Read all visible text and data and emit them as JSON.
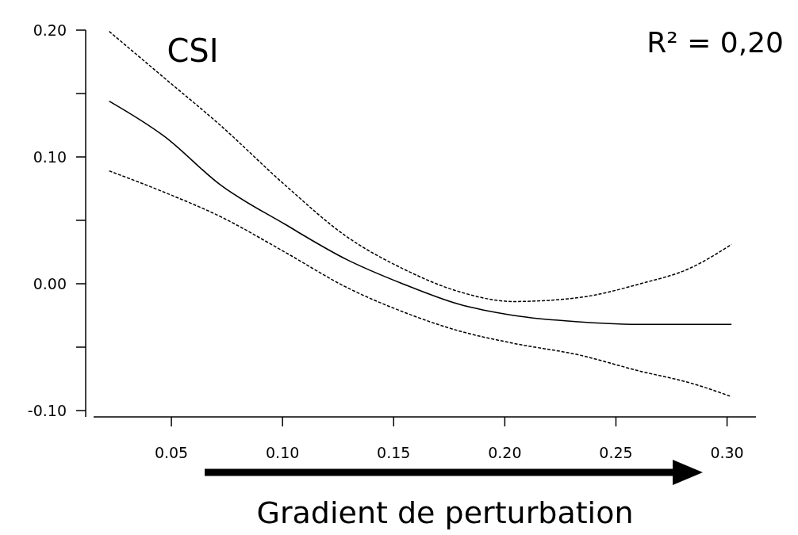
{
  "chart_data": {
    "type": "line",
    "title": "CSI",
    "xlabel": "Gradient de perturbation",
    "annotations": [
      "R² = 0,20"
    ],
    "xlim": [
      0.015,
      0.313
    ],
    "ylim": [
      -0.105,
      0.2
    ],
    "xticks": [
      0.05,
      {
        "value": 0.1,
        "label": "0.10"
      },
      0.15,
      {
        "value": 0.2,
        "label": "0.20"
      },
      0.25,
      {
        "value": 0.3,
        "label": "0.30"
      }
    ],
    "yticks": [
      {
        "value": 0.2,
        "label": "0.20"
      },
      {
        "value": 0.15,
        "label": null
      },
      {
        "value": 0.1,
        "label": "0.10"
      },
      {
        "value": 0.05,
        "label": null
      },
      {
        "value": 0,
        "label": "0.00"
      },
      {
        "value": -0.05,
        "label": null
      },
      {
        "value": -0.1,
        "label": "-0.10"
      }
    ],
    "grid": false,
    "marker": "none",
    "line_style": "solid",
    "x": [
      0.022,
      0.047,
      0.072,
      0.101,
      0.129,
      0.154,
      0.179,
      0.204,
      0.233,
      0.261,
      0.283,
      0.302
    ],
    "series": [
      {
        "color": "#000000",
        "values": [
          0.144,
          0.116,
          0.078,
          0.047,
          0.019,
          0.0,
          -0.016,
          -0.025,
          -0.03,
          -0.032,
          -0.032,
          -0.032
        ]
      },
      {
        "color": "#000000",
        "line_style": "dashed",
        "values": [
          0.199,
          0.162,
          0.125,
          0.078,
          0.037,
          0.012,
          -0.006,
          -0.014,
          -0.011,
          0.0,
          0.012,
          0.031
        ]
      },
      {
        "color": "#000000",
        "line_style": "dashed",
        "values": [
          0.089,
          0.072,
          0.053,
          0.025,
          -0.003,
          -0.022,
          -0.037,
          -0.047,
          -0.056,
          -0.069,
          -0.078,
          -0.089
        ]
      }
    ]
  }
}
